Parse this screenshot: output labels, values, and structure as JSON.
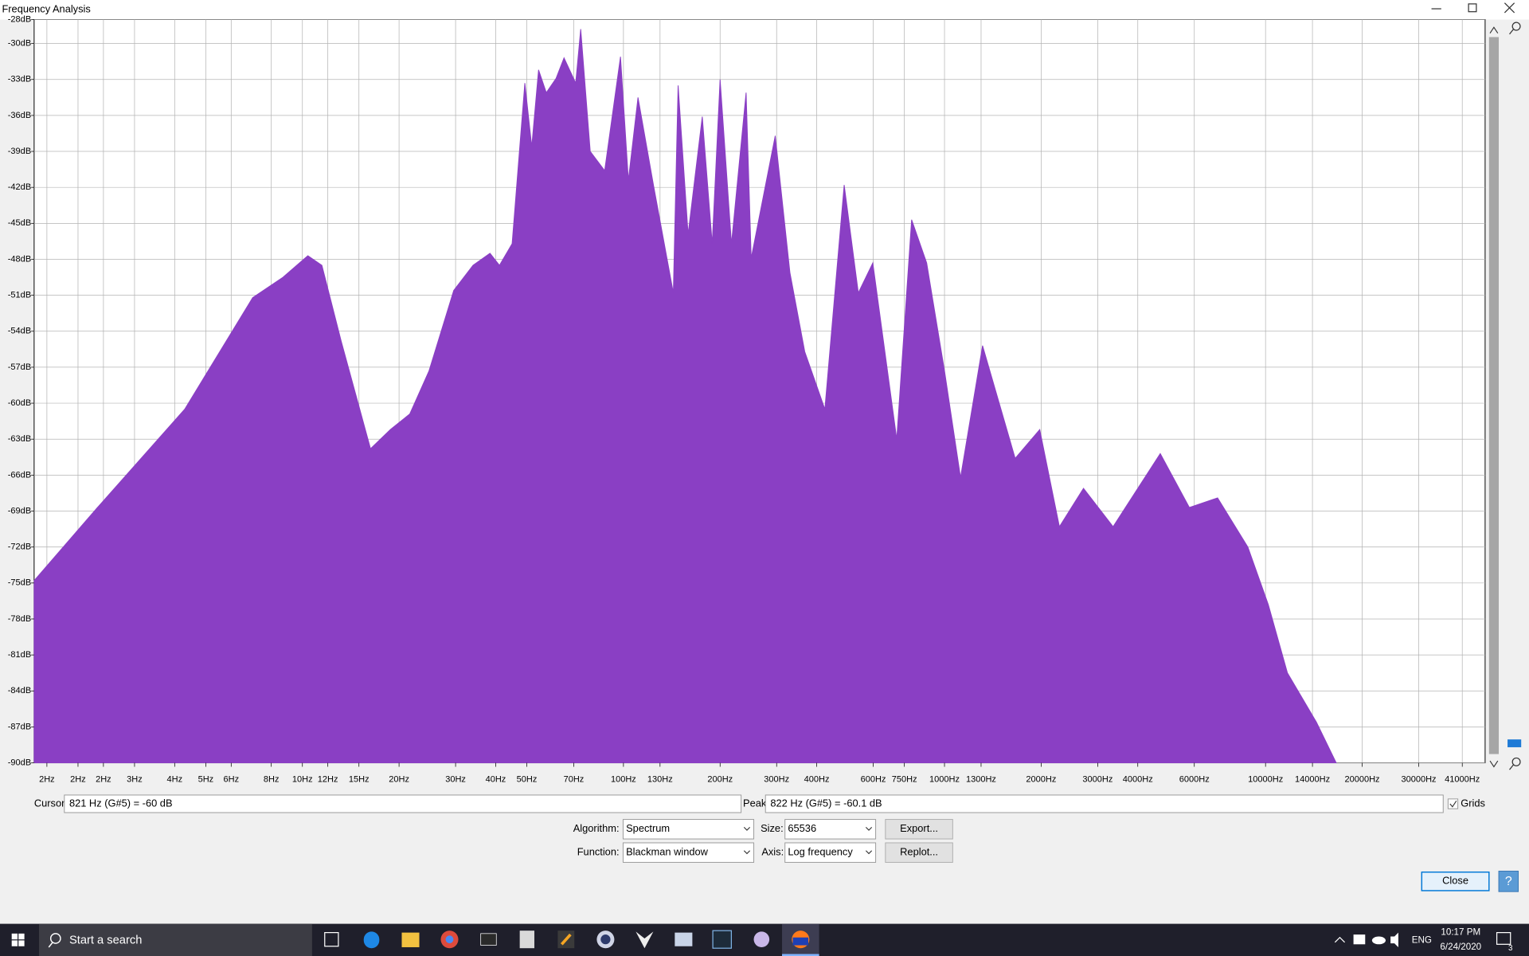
{
  "window": {
    "title": "Frequency Analysis"
  },
  "chart_data": {
    "type": "area",
    "log_x": true,
    "grid": true,
    "color": "#8a3fc4",
    "xlim": [
      1.46,
      48300
    ],
    "ylim": [
      -90,
      -28
    ],
    "x": [
      1.46,
      2.3,
      4.3,
      7.0,
      8.7,
      10.4,
      11.5,
      13.2,
      16.3,
      18.8,
      21.6,
      24.8,
      29.6,
      34.0,
      38.4,
      41.1,
      45.0,
      49.3,
      51.8,
      54.4,
      57.5,
      61.7,
      65.3,
      71.0,
      73.6,
      78.8,
      87.4,
      97.9,
      103.6,
      111,
      124,
      143,
      148,
      159,
      176,
      189,
      200,
      217,
      241,
      250,
      297,
      330,
      367,
      424,
      487,
      539,
      598,
      710,
      790,
      880,
      1000,
      1122,
      1314,
      1660,
      1980,
      2280,
      2710,
      3350,
      4700,
      5790,
      7090,
      8810,
      10200,
      11700,
      14400,
      16600
    ],
    "values": [
      -74.8,
      -68.7,
      -60.5,
      -51.2,
      -49.5,
      -47.7,
      -48.5,
      -54.8,
      -63.8,
      -62.2,
      -60.9,
      -57.3,
      -50.6,
      -48.5,
      -47.5,
      -48.5,
      -46.7,
      -33.3,
      -38.6,
      -32.2,
      -34.1,
      -32.9,
      -31.2,
      -33.3,
      -28.8,
      -39.0,
      -40.6,
      -31.1,
      -41.4,
      -34.5,
      -41.8,
      -50.8,
      -33.5,
      -45.9,
      -36.1,
      -46.7,
      -33.0,
      -46.7,
      -34.1,
      -47.9,
      -37.7,
      -49.1,
      -55.7,
      -60.5,
      -41.8,
      -50.8,
      -48.3,
      -63.0,
      -44.7,
      -48.3,
      -57.3,
      -66.2,
      -55.2,
      -64.6,
      -62.2,
      -70.3,
      -67.1,
      -70.3,
      -64.2,
      -68.7,
      -67.9,
      -72.0,
      -76.8,
      -82.5,
      -86.6,
      -90
    ],
    "xticks": [
      {
        "value": 1.6,
        "label": "2Hz"
      },
      {
        "value": 2,
        "label": "2Hz"
      },
      {
        "value": 2.4,
        "label": "2Hz"
      },
      {
        "value": 3,
        "label": "3Hz"
      },
      {
        "value": 4,
        "label": "4Hz"
      },
      {
        "value": 5,
        "label": "5Hz"
      },
      {
        "value": 6,
        "label": "6Hz"
      },
      {
        "value": 8,
        "label": "8Hz"
      },
      {
        "value": 10,
        "label": "10Hz"
      },
      {
        "value": 12,
        "label": "12Hz"
      },
      {
        "value": 15,
        "label": "15Hz"
      },
      {
        "value": 20,
        "label": "20Hz"
      },
      {
        "value": 30,
        "label": "30Hz"
      },
      {
        "value": 40,
        "label": "40Hz"
      },
      {
        "value": 50,
        "label": "50Hz"
      },
      {
        "value": 70,
        "label": "70Hz"
      },
      {
        "value": 100,
        "label": "100Hz"
      },
      {
        "value": 130,
        "label": "130Hz"
      },
      {
        "value": 200,
        "label": "200Hz"
      },
      {
        "value": 300,
        "label": "300Hz"
      },
      {
        "value": 400,
        "label": "400Hz"
      },
      {
        "value": 600,
        "label": "600Hz"
      },
      {
        "value": 750,
        "label": "750Hz"
      },
      {
        "value": 1000,
        "label": "1000Hz"
      },
      {
        "value": 1300,
        "label": "1300Hz"
      },
      {
        "value": 2000,
        "label": "2000Hz"
      },
      {
        "value": 3000,
        "label": "3000Hz"
      },
      {
        "value": 4000,
        "label": "4000Hz"
      },
      {
        "value": 6000,
        "label": "6000Hz"
      },
      {
        "value": 10000,
        "label": "10000Hz"
      },
      {
        "value": 14000,
        "label": "14000Hz"
      },
      {
        "value": 20000,
        "label": "20000Hz"
      },
      {
        "value": 30000,
        "label": "30000Hz"
      },
      {
        "value": 41000,
        "label": "41000Hz"
      }
    ],
    "yticks": [
      {
        "value": -28,
        "label": "-28dB"
      },
      {
        "value": -30,
        "label": "-30dB"
      },
      {
        "value": -33,
        "label": "-33dB"
      },
      {
        "value": -36,
        "label": "-36dB"
      },
      {
        "value": -39,
        "label": "-39dB"
      },
      {
        "value": -42,
        "label": "-42dB"
      },
      {
        "value": -45,
        "label": "-45dB"
      },
      {
        "value": -48,
        "label": "-48dB"
      },
      {
        "value": -51,
        "label": "-51dB"
      },
      {
        "value": -54,
        "label": "-54dB"
      },
      {
        "value": -57,
        "label": "-57dB"
      },
      {
        "value": -60,
        "label": "-60dB"
      },
      {
        "value": -63,
        "label": "-63dB"
      },
      {
        "value": -66,
        "label": "-66dB"
      },
      {
        "value": -69,
        "label": "-69dB"
      },
      {
        "value": -72,
        "label": "-72dB"
      },
      {
        "value": -75,
        "label": "-75dB"
      },
      {
        "value": -78,
        "label": "-78dB"
      },
      {
        "value": -81,
        "label": "-81dB"
      },
      {
        "value": -84,
        "label": "-84dB"
      },
      {
        "value": -87,
        "label": "-87dB"
      },
      {
        "value": -90,
        "label": "-90dB"
      }
    ]
  },
  "cursor": {
    "label": "Cursor:",
    "value": "821 Hz (G#5) = -60 dB"
  },
  "peak": {
    "label": "Peak:",
    "value": "822 Hz (G#5) = -60.1 dB"
  },
  "grids": "Grids",
  "algorithm": {
    "label": "Algorithm:",
    "value": "Spectrum"
  },
  "size": {
    "label": "Size:",
    "value": "65536"
  },
  "function": {
    "label": "Function:",
    "value": "Blackman window"
  },
  "axis": {
    "label": "Axis:",
    "value": "Log frequency"
  },
  "buttons": {
    "export": "Export...",
    "replot": "Replot...",
    "close": "Close",
    "help": "?"
  },
  "taskbar": {
    "search": "Start a search",
    "language": "ENG",
    "time": "10:17 PM",
    "date": "6/24/2020",
    "notifications": "3"
  }
}
